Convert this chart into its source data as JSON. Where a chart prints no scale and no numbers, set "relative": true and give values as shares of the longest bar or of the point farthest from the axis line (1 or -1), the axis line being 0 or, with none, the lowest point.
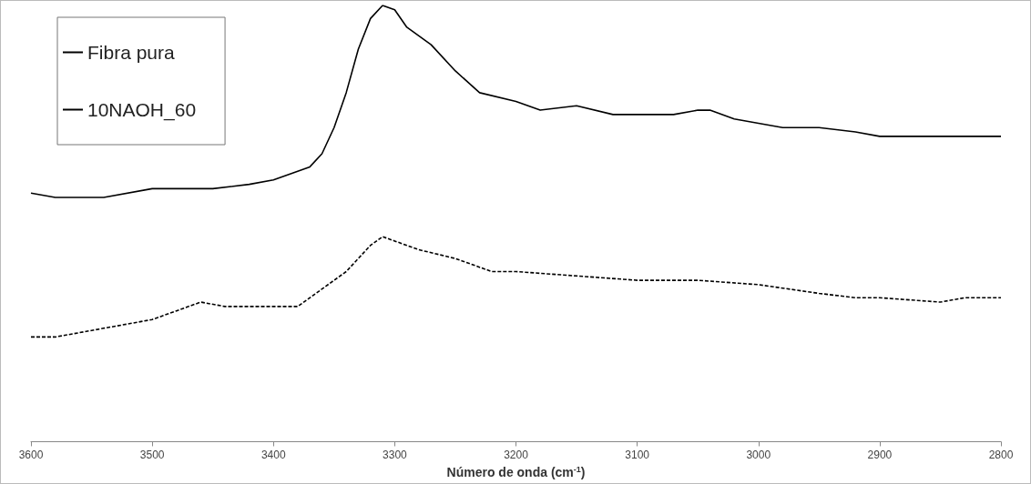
{
  "chart_data": {
    "type": "line",
    "xlabel": "Número de onda (cm$^{-1}$)",
    "relative": true,
    "xlim": [
      3600,
      2800
    ],
    "xticks": [
      3600,
      3500,
      3400,
      3300,
      3200,
      3100,
      3000,
      2900,
      2800
    ],
    "grid": false,
    "legend": "top left",
    "marker": "none",
    "series": [
      {
        "name": "Fibra pura",
        "color": "#000000",
        "line_style": "solid",
        "x": [
          3600,
          3580,
          3560,
          3540,
          3500,
          3450,
          3420,
          3400,
          3380,
          3370,
          3360,
          3350,
          3340,
          3330,
          3320,
          3310,
          3300,
          3290,
          3270,
          3250,
          3230,
          3200,
          3180,
          3150,
          3120,
          3100,
          3070,
          3050,
          3040,
          3020,
          3000,
          2980,
          2950,
          2920,
          2900,
          2850,
          2800
        ],
        "values": [
          0.57,
          0.56,
          0.56,
          0.56,
          0.58,
          0.58,
          0.59,
          0.6,
          0.62,
          0.63,
          0.66,
          0.72,
          0.8,
          0.9,
          0.97,
          1,
          0.99,
          0.95,
          0.91,
          0.85,
          0.8,
          0.78,
          0.76,
          0.77,
          0.75,
          0.75,
          0.75,
          0.76,
          0.76,
          0.74,
          0.73,
          0.72,
          0.72,
          0.71,
          0.7,
          0.7,
          0.7
        ]
      },
      {
        "name": "10NAOH_60",
        "color": "#000000",
        "line_style": "dashed",
        "x": [
          3600,
          3580,
          3560,
          3540,
          3520,
          3500,
          3480,
          3460,
          3440,
          3420,
          3400,
          3380,
          3360,
          3340,
          3320,
          3310,
          3300,
          3280,
          3250,
          3220,
          3200,
          3150,
          3100,
          3050,
          3000,
          2950,
          2920,
          2900,
          2850,
          2830,
          2800
        ],
        "values": [
          0.24,
          0.24,
          0.25,
          0.26,
          0.27,
          0.28,
          0.3,
          0.32,
          0.31,
          0.31,
          0.31,
          0.31,
          0.35,
          0.39,
          0.45,
          0.47,
          0.46,
          0.44,
          0.42,
          0.39,
          0.39,
          0.38,
          0.37,
          0.37,
          0.36,
          0.34,
          0.33,
          0.33,
          0.32,
          0.33,
          0.33
        ]
      }
    ]
  }
}
